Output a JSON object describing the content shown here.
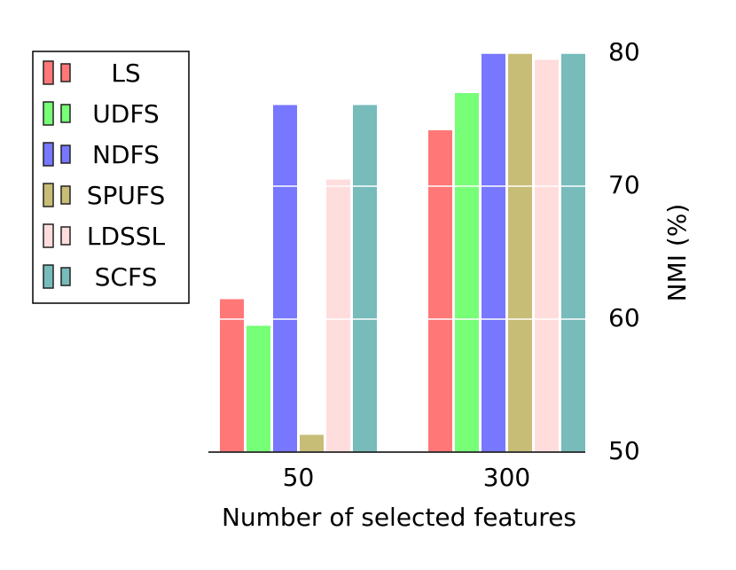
{
  "chart_data": {
    "type": "bar",
    "xlabel": "Number of selected features",
    "ylabel": "NMI (%)",
    "categories": [
      "50",
      "300"
    ],
    "series": [
      {
        "name": "LS",
        "color": "#ff7777",
        "values": [
          61.5,
          74.2
        ]
      },
      {
        "name": "UDFS",
        "color": "#77ff77",
        "values": [
          59.5,
          77.0
        ]
      },
      {
        "name": "NDFS",
        "color": "#7777ff",
        "values": [
          76.1,
          80
        ]
      },
      {
        "name": "SPUFS",
        "color": "#c8bd77",
        "values": [
          51.3,
          80
        ]
      },
      {
        "name": "LDSSL",
        "color": "#ffdddd",
        "values": [
          70.5,
          79.5
        ]
      },
      {
        "name": "SCFS",
        "color": "#77bbbb",
        "values": [
          76.1,
          80
        ]
      }
    ],
    "ylim": [
      50,
      80
    ],
    "yticks": [
      50,
      60,
      70,
      80
    ],
    "grid": true
  }
}
